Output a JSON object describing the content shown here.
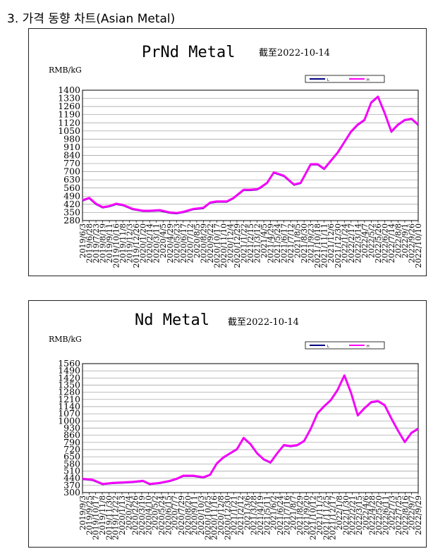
{
  "heading": "3. 가격 동향 차트(Asian Metal)",
  "colors": {
    "low": "#000080",
    "high": "#ff00ff",
    "grid": "#9a9a9a",
    "border": "#222222"
  },
  "chart_data": [
    {
      "type": "line",
      "title": "PrNd Metal",
      "subtitle": "截至2022-10-14",
      "ylabel": "RMB/kG",
      "legend": [
        "L",
        "H"
      ],
      "legend_position": "top-right",
      "grid": true,
      "ylim": [
        280,
        1400
      ],
      "yticks": [
        280,
        350,
        420,
        490,
        560,
        630,
        700,
        770,
        840,
        910,
        980,
        1050,
        1120,
        1190,
        1260,
        1330,
        1400
      ],
      "xticks": [
        "2019/6/3",
        "2019/6/28",
        "2019/7/23",
        "2019/8/19",
        "2019/9/11",
        "2019/10/16",
        "2019/11/8",
        "2019/12/3",
        "2019/12/26",
        "2020/1/20",
        "2020/2/14",
        "2020/3/11",
        "2020/4/5",
        "2020/4/29",
        "2020/5/23",
        "2020/6/17",
        "2020/7/12",
        "2020/8/5",
        "2020/8/29",
        "2020/9/22",
        "2020/10/17",
        "2020/11/10",
        "2020/12/4",
        "2020/12/29",
        "2021/1/22",
        "2021/2/15",
        "2021/3/12",
        "2021/4/5",
        "2021/4/29",
        "2021/5/24",
        "2021/6/17",
        "2021/7/12",
        "2021/8/5",
        "2021/8/30",
        "2021/9/23",
        "2021/10/18",
        "2021/11/11",
        "2021/12/6",
        "2021/12/30",
        "2022/1/24",
        "2022/2/17",
        "2022/3/14",
        "2022/4/7",
        "2022/5/2",
        "2022/5/26",
        "2022/6/20",
        "2022/7/14",
        "2022/8/8",
        "2022/9/1",
        "2022/9/26",
        "2022/10/10"
      ],
      "series": [
        {
          "name": "L",
          "x_frac": [
            0,
            0.02,
            0.04,
            0.06,
            0.08,
            0.1,
            0.12,
            0.15,
            0.18,
            0.2,
            0.23,
            0.26,
            0.28,
            0.3,
            0.33,
            0.36,
            0.38,
            0.4,
            0.43,
            0.45,
            0.48,
            0.5,
            0.52,
            0.53,
            0.55,
            0.57,
            0.6,
            0.62,
            0.63,
            0.65,
            0.68,
            0.7,
            0.72,
            0.74,
            0.76,
            0.78,
            0.8,
            0.82,
            0.84,
            0.86,
            0.88,
            0.9,
            0.92,
            0.94,
            0.96,
            0.98,
            1.0
          ],
          "values": [
            450,
            470,
            420,
            390,
            400,
            420,
            410,
            375,
            360,
            360,
            365,
            345,
            340,
            350,
            375,
            385,
            430,
            440,
            440,
            470,
            540,
            540,
            545,
            560,
            600,
            690,
            660,
            610,
            585,
            600,
            760,
            760,
            720,
            790,
            860,
            950,
            1040,
            1100,
            1140,
            1290,
            1340,
            1200,
            1040,
            1100,
            1140,
            1150,
            1100
          ]
        },
        {
          "name": "H",
          "x_frac": [
            0,
            0.02,
            0.04,
            0.06,
            0.08,
            0.1,
            0.12,
            0.15,
            0.18,
            0.2,
            0.23,
            0.26,
            0.28,
            0.3,
            0.33,
            0.36,
            0.38,
            0.4,
            0.43,
            0.45,
            0.48,
            0.5,
            0.52,
            0.53,
            0.55,
            0.57,
            0.6,
            0.62,
            0.63,
            0.65,
            0.68,
            0.7,
            0.72,
            0.74,
            0.76,
            0.78,
            0.8,
            0.82,
            0.84,
            0.86,
            0.88,
            0.9,
            0.92,
            0.94,
            0.96,
            0.98,
            1.0
          ],
          "values": [
            455,
            475,
            425,
            395,
            405,
            425,
            415,
            380,
            365,
            365,
            370,
            350,
            345,
            355,
            380,
            390,
            435,
            445,
            445,
            475,
            545,
            545,
            550,
            565,
            605,
            695,
            665,
            615,
            590,
            605,
            765,
            765,
            725,
            795,
            865,
            955,
            1045,
            1105,
            1145,
            1295,
            1345,
            1205,
            1045,
            1105,
            1145,
            1155,
            1105
          ]
        }
      ]
    },
    {
      "type": "line",
      "title": "Nd Metal",
      "subtitle": "截至2022-10-14",
      "ylabel": "RMB/kG",
      "legend": [
        "L",
        "H"
      ],
      "legend_position": "top-right",
      "grid": true,
      "ylim": [
        300,
        1560
      ],
      "yticks": [
        300,
        370,
        440,
        510,
        580,
        650,
        720,
        790,
        860,
        930,
        1000,
        1070,
        1140,
        1210,
        1280,
        1350,
        1420,
        1490,
        1560
      ],
      "xticks": [
        "2019/9/3",
        "2019/9/25",
        "2019/10/17",
        "2019/11/8",
        "2019/11/30",
        "2019/12/22",
        "2020/1/13",
        "2020/2/4",
        "2020/2/26",
        "2020/3/19",
        "2020/4/10",
        "2020/5/2",
        "2020/5/24",
        "2020/6/15",
        "2020/7/7",
        "2020/7/29",
        "2020/8/20",
        "2020/9/11",
        "2020/10/3",
        "2020/10/25",
        "2020/11/16",
        "2020/12/8",
        "2020/12/30",
        "2021/1/21",
        "2021/2/12",
        "2021/3/6",
        "2021/3/28",
        "2021/4/19",
        "2021/5/11",
        "2021/6/2",
        "2021/6/24",
        "2021/7/16",
        "2021/8/7",
        "2021/8/29",
        "2021/9/20",
        "2021/10/12",
        "2021/11/3",
        "2021/11/25",
        "2021/12/17",
        "2022/1/8",
        "2022/1/30",
        "2022/2/21",
        "2022/3/15",
        "2022/4/6",
        "2022/4/28",
        "2022/5/20",
        "2022/6/11",
        "2022/7/3",
        "2022/7/25",
        "2022/8/16",
        "2022/9/7",
        "2022/9/29"
      ],
      "series": [
        {
          "name": "L",
          "x_frac": [
            0,
            0.03,
            0.06,
            0.09,
            0.12,
            0.15,
            0.18,
            0.2,
            0.23,
            0.26,
            0.28,
            0.3,
            0.33,
            0.36,
            0.38,
            0.4,
            0.42,
            0.44,
            0.46,
            0.48,
            0.5,
            0.52,
            0.54,
            0.56,
            0.58,
            0.6,
            0.62,
            0.64,
            0.66,
            0.68,
            0.7,
            0.72,
            0.74,
            0.76,
            0.78,
            0.8,
            0.82,
            0.84,
            0.86,
            0.88,
            0.9,
            0.92,
            0.94,
            0.96,
            0.98,
            1.0
          ],
          "values": [
            430,
            420,
            380,
            390,
            395,
            400,
            410,
            380,
            390,
            410,
            430,
            460,
            460,
            445,
            470,
            580,
            640,
            680,
            720,
            830,
            770,
            680,
            620,
            590,
            680,
            760,
            750,
            760,
            800,
            920,
            1070,
            1140,
            1200,
            1300,
            1440,
            1270,
            1050,
            1120,
            1180,
            1190,
            1150,
            1020,
            900,
            790,
            880,
            920
          ]
        },
        {
          "name": "H",
          "x_frac": [
            0,
            0.03,
            0.06,
            0.09,
            0.12,
            0.15,
            0.18,
            0.2,
            0.23,
            0.26,
            0.28,
            0.3,
            0.33,
            0.36,
            0.38,
            0.4,
            0.42,
            0.44,
            0.46,
            0.48,
            0.5,
            0.52,
            0.54,
            0.56,
            0.58,
            0.6,
            0.62,
            0.64,
            0.66,
            0.68,
            0.7,
            0.72,
            0.74,
            0.76,
            0.78,
            0.8,
            0.82,
            0.84,
            0.86,
            0.88,
            0.9,
            0.92,
            0.94,
            0.96,
            0.98,
            1.0
          ],
          "values": [
            435,
            425,
            385,
            395,
            400,
            405,
            415,
            385,
            395,
            415,
            435,
            465,
            465,
            450,
            475,
            585,
            645,
            685,
            725,
            835,
            775,
            685,
            625,
            595,
            685,
            765,
            755,
            765,
            805,
            925,
            1075,
            1145,
            1205,
            1305,
            1445,
            1275,
            1055,
            1125,
            1185,
            1195,
            1155,
            1025,
            905,
            795,
            885,
            925
          ]
        }
      ]
    }
  ]
}
